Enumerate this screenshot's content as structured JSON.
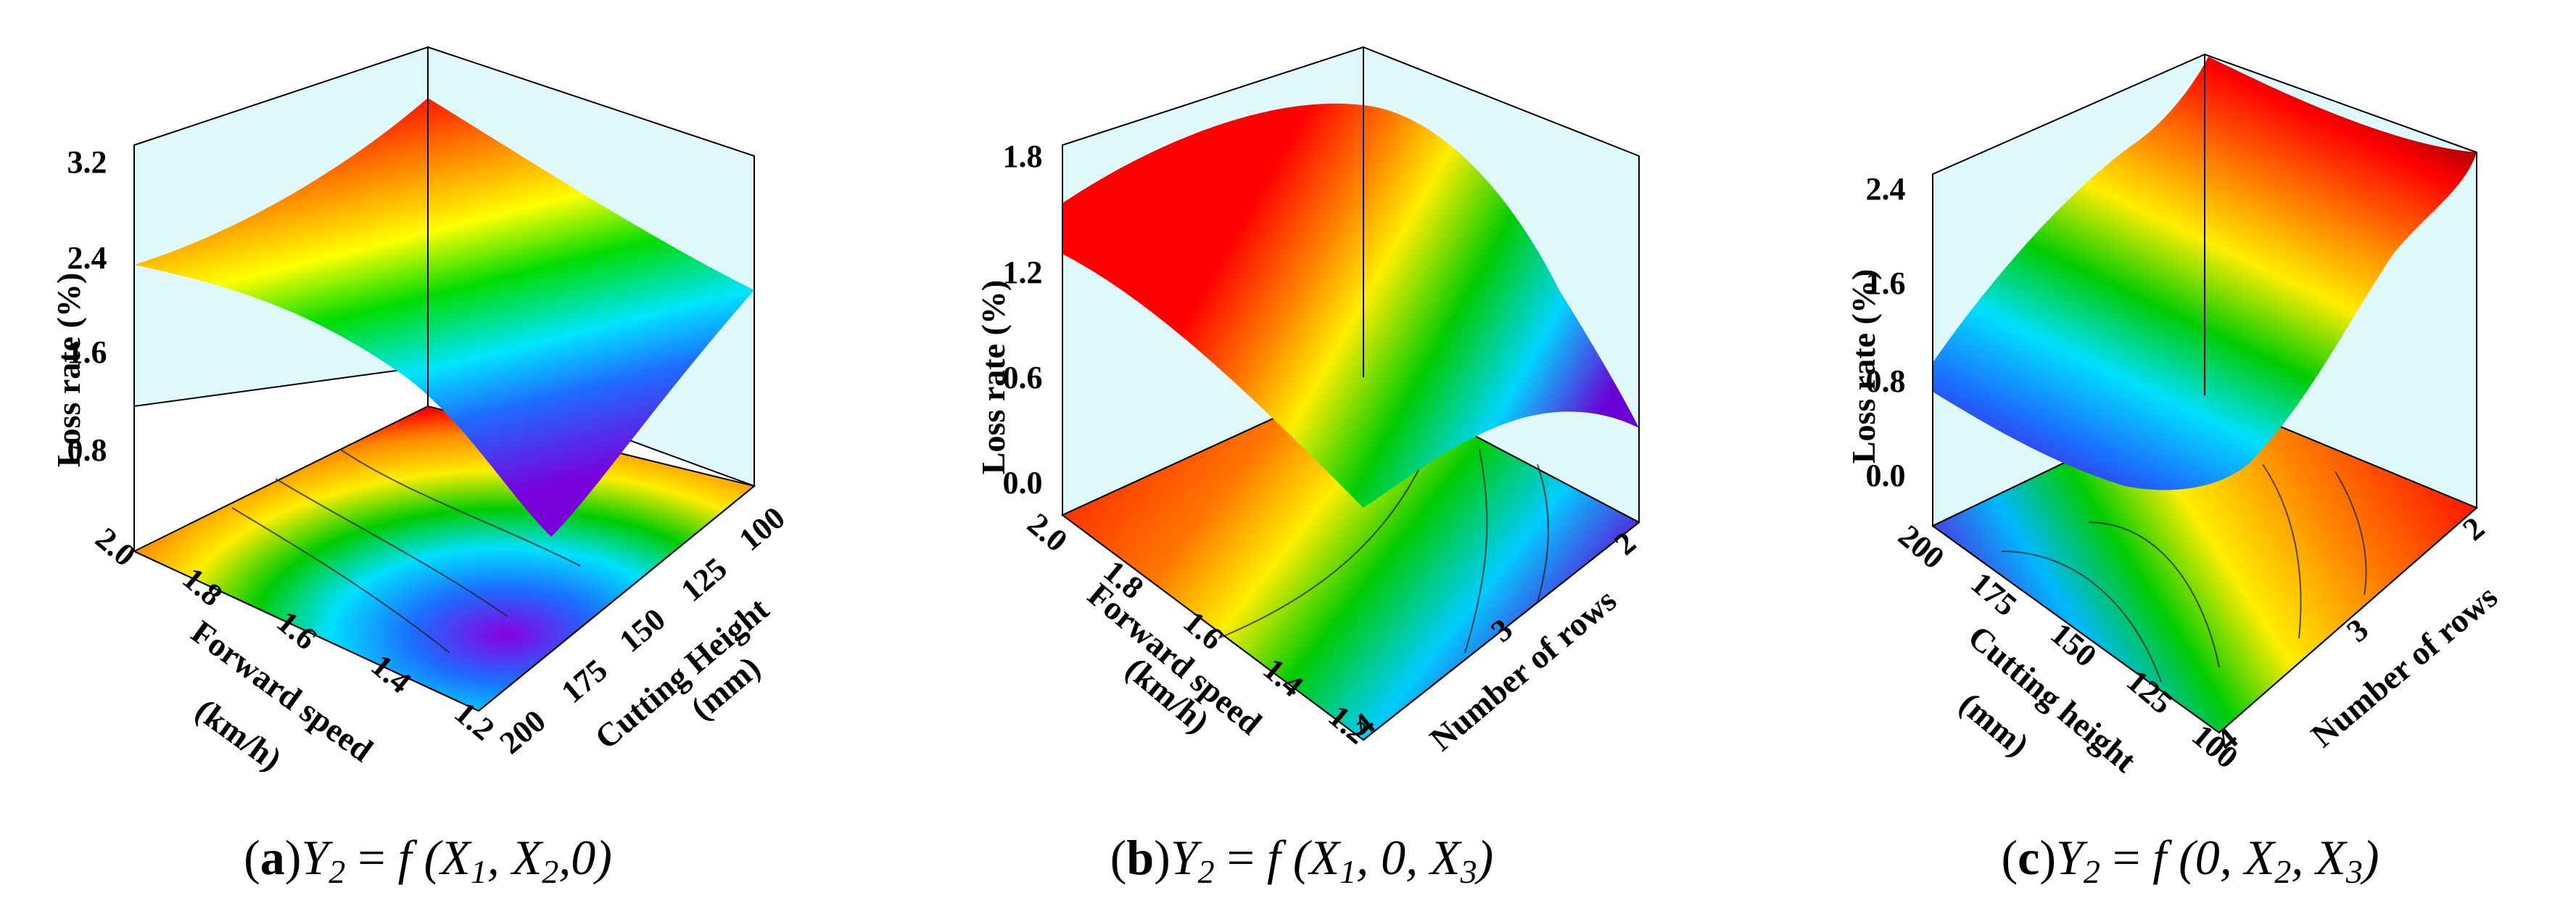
{
  "figure": {
    "panels": [
      {
        "caption": {
          "label": "a",
          "formula": "Y",
          "sub": "2",
          "eq": " = ",
          "func": "f",
          "args_before": " (X",
          "a1": "1",
          "mid": ", X",
          "a2": "2",
          "after": ",0)"
        },
        "zlabel": "Loss rate (%)",
        "xlabel": [
          "Forward speed",
          "(km/h)"
        ],
        "ylabel": [
          "Cutting Height",
          "(mm)"
        ],
        "z_ticks": [
          "3.2",
          "2.4",
          "1.6",
          "0.8"
        ],
        "x_ticks": [
          "2.0",
          "1.8",
          "1.6",
          "1.4",
          "1.2"
        ],
        "y_ticks": [
          "100",
          "125",
          "150",
          "175",
          "200"
        ]
      },
      {
        "caption": {
          "label": "b",
          "formula": "Y",
          "sub": "2",
          "eq": " = ",
          "func": "f",
          "args_before": " (X",
          "a1": "1",
          "mid": ", 0, X",
          "a2": "3",
          "after": ")"
        },
        "zlabel": "Loss rate (%)",
        "xlabel": [
          "Forward speed",
          "(km/h)"
        ],
        "ylabel": [
          "Number of rows"
        ],
        "z_ticks": [
          "1.8",
          "1.2",
          "0.6",
          "0.0"
        ],
        "x_ticks": [
          "2.0",
          "1.8",
          "1.6",
          "1.4",
          "1.2"
        ],
        "y_ticks": [
          "2",
          "3",
          "4"
        ]
      },
      {
        "caption": {
          "label": "c",
          "formula": "Y",
          "sub": "2",
          "eq": " = ",
          "func": "f",
          "args_before": " (0, X",
          "a1": "2",
          "mid": ", X",
          "a2": "3",
          "after": ")"
        },
        "zlabel": "Loss rate (%)",
        "xlabel": [
          "Cutting height",
          "(mm)"
        ],
        "ylabel": [
          "Number of rows"
        ],
        "z_ticks": [
          "2.4",
          "1.6",
          "0.8",
          "0.0"
        ],
        "x_ticks": [
          "200",
          "175",
          "150",
          "125",
          "100"
        ],
        "y_ticks": [
          "2",
          "3",
          "4"
        ]
      }
    ]
  },
  "chart_data": [
    {
      "type": "surface",
      "title": "",
      "xlabel": "Forward speed (km/h)",
      "ylabel": "Cutting Height (mm)",
      "zlabel": "Loss rate (%)",
      "xlim": [
        1.2,
        2.0
      ],
      "ylim": [
        100,
        200
      ],
      "zlim": [
        0.0,
        3.2
      ],
      "x_ticks": [
        1.2,
        1.4,
        1.6,
        1.8,
        2.0
      ],
      "y_ticks": [
        100,
        125,
        150,
        175,
        200
      ],
      "z_ticks": [
        0.8,
        1.6,
        2.4,
        3.2
      ],
      "colormap": "rainbow (violet low → red high)",
      "corner_values": {
        "x2.0_y200": 2.3,
        "x2.0_y100": 2.9,
        "x1.2_y100": 2.2,
        "x1.2_y200": 0.9
      },
      "minimum": {
        "x": 1.35,
        "y": 155,
        "z": 0.5
      },
      "contour_projection": true
    },
    {
      "type": "surface",
      "title": "",
      "xlabel": "Forward speed (km/h)",
      "ylabel": "Number of rows",
      "zlabel": "Loss rate (%)",
      "xlim": [
        1.2,
        2.0
      ],
      "ylim": [
        2,
        4
      ],
      "zlim": [
        -0.3,
        1.8
      ],
      "x_ticks": [
        1.2,
        1.4,
        1.6,
        1.8,
        2.0
      ],
      "y_ticks": [
        2,
        3,
        4
      ],
      "z_ticks": [
        0.0,
        0.6,
        1.2,
        1.8
      ],
      "colormap": "rainbow (violet low → red high)",
      "corner_values": {
        "x2.0_y4": 1.4,
        "x2.0_y2": 1.7,
        "x1.2_y2": 0.0,
        "x1.2_y4": 0.5
      },
      "maximum": {
        "x": 1.9,
        "y": 3.3,
        "z": 1.8
      },
      "contour_projection": true
    },
    {
      "type": "surface",
      "title": "",
      "xlabel": "Cutting height (mm)",
      "ylabel": "Number of rows",
      "zlabel": "Loss rate (%)",
      "xlim": [
        100,
        200
      ],
      "ylim": [
        2,
        4
      ],
      "zlim": [
        -0.4,
        2.4
      ],
      "x_ticks": [
        100,
        125,
        150,
        175,
        200
      ],
      "y_ticks": [
        2,
        3,
        4
      ],
      "z_ticks": [
        0.0,
        0.8,
        1.6,
        2.4
      ],
      "colormap": "rainbow (violet low → red high)",
      "corner_values": {
        "x200_y4": 0.8,
        "x200_y2": 2.5,
        "x100_y2": 1.8,
        "x100_y4": 0.3
      },
      "minimum": {
        "x": 160,
        "y": 3.7,
        "z": 0.0
      },
      "contour_projection": true
    }
  ]
}
